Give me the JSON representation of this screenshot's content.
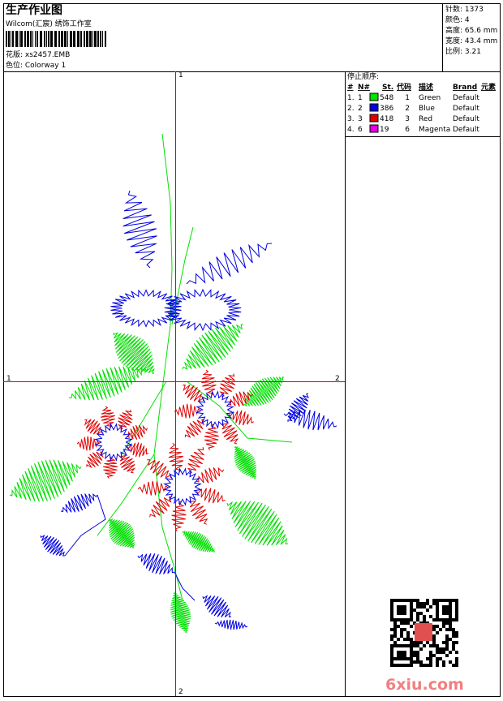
{
  "header": {
    "title": "生产作业图",
    "studio": "Wilcom(汇宸) 绣饰工作室",
    "design": "花版: xs2457.EMB",
    "colorway": "色位: Colorway 1"
  },
  "info": [
    "针数: 1373",
    "颜色: 4",
    "高度: 65.6 mm",
    "宽度: 43.4 mm",
    "比例: 3.21"
  ],
  "axes": {
    "top": "1",
    "left": "1",
    "right": "2",
    "bottom": "2"
  },
  "table": {
    "title": "停止顺序:",
    "columns": [
      "#",
      "N#",
      "St.",
      "代码",
      "描述",
      "Brand",
      "元素"
    ],
    "rows": [
      {
        "cells": [
          "1.",
          "1",
          "548",
          "1",
          "Green",
          "Default"
        ],
        "color": "#00e000"
      },
      {
        "cells": [
          "2.",
          "2",
          "386",
          "2",
          "Blue",
          "Default"
        ],
        "color": "#0000e0"
      },
      {
        "cells": [
          "3.",
          "3",
          "418",
          "3",
          "Red",
          "Default"
        ],
        "color": "#e00000"
      },
      {
        "cells": [
          "4.",
          "6",
          "19",
          "6",
          "Magenta",
          "Default"
        ],
        "color": "#e000e0"
      }
    ]
  },
  "watermark": "6xiu.com"
}
